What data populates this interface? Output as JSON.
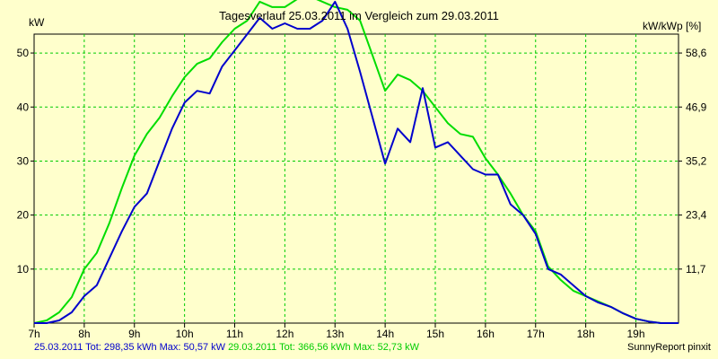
{
  "title": "Tagesverlauf 25.03.2011 im Vergleich zum 29.03.2011",
  "unit_left": "kW",
  "unit_right": "kW/kWp [%]",
  "footer": {
    "series1_text": "25.03.2011 Tot: 298,35 kWh Max: 50,57 kW",
    "series2_text": "29.03.2011 Tot: 366,56 kWh Max: 52,73 kW",
    "brand": "SunnyReport pinxit"
  },
  "colors": {
    "background": "#ffffcc",
    "grid": "#00cc00",
    "series1": "#0000cc",
    "series2": "#00dd00"
  },
  "chart_data": {
    "type": "line",
    "title": "Tagesverlauf 25.03.2011 im Vergleich zum 29.03.2011",
    "ylabel": "kW",
    "y2label": "kW/kWp [%]",
    "xlim": [
      7,
      19.85
    ],
    "ylim": [
      0,
      53.5
    ],
    "x_ticks": [
      7,
      8,
      9,
      10,
      11,
      12,
      13,
      14,
      15,
      16,
      17,
      18,
      19
    ],
    "x_tick_labels": [
      "7h",
      "8h",
      "9h",
      "10h",
      "11h",
      "12h",
      "13h",
      "14h",
      "15h",
      "16h",
      "17h",
      "18h",
      "19h"
    ],
    "y_ticks": [
      10,
      20,
      30,
      40,
      50
    ],
    "y_tick_labels": [
      "10",
      "20",
      "30",
      "40",
      "50"
    ],
    "y2_ticks": [
      10,
      20,
      30,
      40,
      50
    ],
    "y2_tick_labels": [
      "11,7",
      "23,4",
      "35,2",
      "46,9",
      "58,6"
    ],
    "grid": true,
    "series": [
      {
        "name": "25.03.2011",
        "color": "#0000cc",
        "x": [
          7.0,
          7.25,
          7.5,
          7.75,
          8.0,
          8.25,
          8.5,
          8.75,
          9.0,
          9.25,
          9.5,
          9.75,
          10.0,
          10.25,
          10.5,
          10.75,
          11.0,
          11.25,
          11.5,
          11.75,
          12.0,
          12.25,
          12.5,
          12.75,
          13.0,
          13.25,
          13.5,
          13.75,
          14.0,
          14.25,
          14.5,
          14.75,
          15.0,
          15.25,
          15.5,
          15.75,
          16.0,
          16.25,
          16.5,
          16.75,
          17.0,
          17.25,
          17.5,
          17.75,
          18.0,
          18.25,
          18.5,
          18.75,
          19.0,
          19.25,
          19.5,
          19.75,
          19.85
        ],
        "y": [
          0,
          0,
          0.5,
          2,
          5,
          7,
          12,
          17,
          21.5,
          24,
          30,
          36,
          40.8,
          43,
          42.5,
          47.5,
          50.5,
          53.5,
          56.5,
          54.5,
          55.5,
          54.5,
          54.5,
          56,
          59.5,
          54.5,
          46.5,
          38,
          29.5,
          36,
          33.5,
          43.5,
          32.5,
          33.5,
          31,
          28.5,
          27.5,
          27.5,
          22,
          20,
          16.5,
          10,
          9,
          7,
          5,
          3.8,
          3,
          1.8,
          0.8,
          0.3,
          0,
          0,
          0
        ]
      },
      {
        "name": "29.03.2011",
        "color": "#00dd00",
        "x": [
          7.0,
          7.25,
          7.5,
          7.75,
          8.0,
          8.25,
          8.5,
          8.75,
          9.0,
          9.25,
          9.5,
          9.75,
          10.0,
          10.25,
          10.5,
          10.75,
          11.0,
          11.25,
          11.5,
          11.75,
          12.0,
          12.25,
          12.5,
          12.75,
          13.0,
          13.25,
          13.5,
          13.75,
          14.0,
          14.25,
          14.5,
          14.75,
          15.0,
          15.25,
          15.5,
          15.75,
          16.0,
          16.25,
          16.5,
          16.75,
          17.0,
          17.25,
          17.5,
          17.75,
          18.0,
          18.25,
          18.5,
          18.75,
          19.0,
          19.25,
          19.5,
          19.75,
          19.85
        ],
        "y": [
          0,
          0.5,
          2,
          4.8,
          10,
          13,
          18.5,
          25,
          31,
          35,
          38,
          42,
          45.5,
          48,
          49,
          52,
          54.5,
          56,
          59.5,
          58.5,
          58.5,
          60,
          60.5,
          59.5,
          58.5,
          58,
          56,
          49.5,
          43,
          46,
          45,
          43,
          40,
          37,
          35,
          34.5,
          30.5,
          27.5,
          24,
          20,
          17,
          10.5,
          8,
          6,
          5,
          4,
          3,
          1.8,
          0.8,
          0.3,
          0,
          0,
          0
        ]
      }
    ]
  }
}
